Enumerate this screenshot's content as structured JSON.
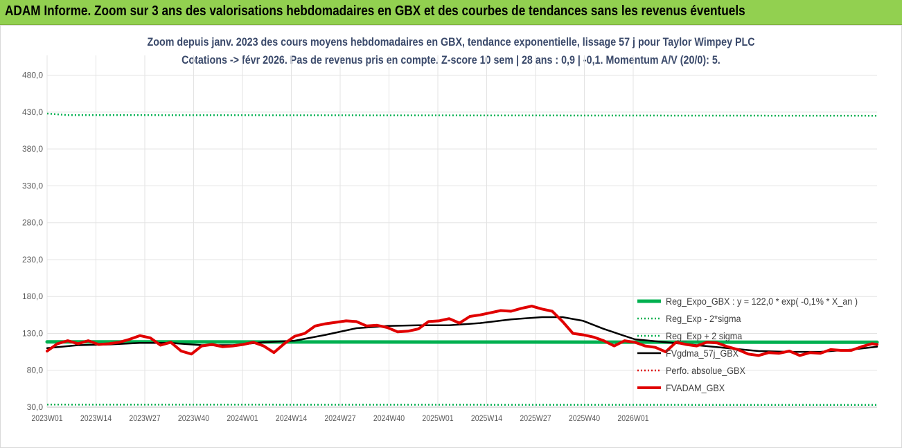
{
  "header": {
    "banner": "ADAM Informe. Zoom sur 3 ans des valorisations hebdomadaires en GBX et des courbes de tendances sans les revenus éventuels"
  },
  "chart_data": {
    "type": "line",
    "title": "Zoom depuis janv. 2023 des cours moyens hebdomadaires en GBX, tendance exponentielle, lissage 57 j pour Taylor Wimpey PLC",
    "subtitle": "Cotations -> févr 2026. Pas de revenus pris en compte. Z-score 10 sem | 28 ans : 0,9 | -0,1. Momentum A/V (20/0): 5.",
    "x_ticks": [
      "2023W01",
      "2023W14",
      "2023W27",
      "2023W40",
      "2024W01",
      "2024W14",
      "2024W27",
      "2024W40",
      "2025W01",
      "2025W14",
      "2025W27",
      "2025W40",
      "2026W01"
    ],
    "y_ticks": [
      "30,0",
      "80,0",
      "130,0",
      "180,0",
      "230,0",
      "280,0",
      "330,0",
      "380,0",
      "430,0",
      "480,0"
    ],
    "ylim": [
      30,
      490
    ],
    "x_range": [
      0,
      161
    ],
    "legend_position": "right",
    "series": [
      {
        "name": "Reg_Expo_GBX : y = 122,0 * exp( -0,1% *  X_an )",
        "color": "#00b050",
        "style": "thick",
        "x": [
          0,
          161
        ],
        "values": [
          118.5,
          118.0
        ]
      },
      {
        "name": "Reg_Exp - 2*sigma",
        "color": "#00b050",
        "style": "dotted",
        "x": [
          0,
          161
        ],
        "values": [
          33.5,
          33.0
        ]
      },
      {
        "name": "Reg_Exp + 2 sigma",
        "color": "#00b050",
        "style": "dotted",
        "x": [
          0,
          4,
          161
        ],
        "values": [
          428,
          426,
          425
        ]
      },
      {
        "name": "FVgdma_57j_GBX",
        "color": "#000000",
        "style": "solid",
        "x": [
          0,
          6,
          12,
          18,
          24,
          30,
          36,
          42,
          48,
          54,
          60,
          66,
          72,
          78,
          84,
          90,
          96,
          100,
          104,
          108,
          114,
          120,
          126,
          132,
          138,
          144,
          150,
          156,
          161
        ],
        "values": [
          110,
          114,
          115,
          117,
          117,
          114,
          114,
          118,
          120,
          128,
          137,
          140,
          141,
          141,
          144,
          149,
          152,
          152,
          147,
          136,
          122,
          118,
          114,
          110,
          106,
          105,
          105,
          108,
          112
        ]
      },
      {
        "name": "Perfo. absolue_GBX",
        "color": "#e00000",
        "style": "dotted",
        "x": [],
        "values": []
      },
      {
        "name": "FVADAM_GBX",
        "color": "#e00000",
        "style": "thick",
        "x": [
          0,
          2,
          4,
          6,
          8,
          10,
          12,
          14,
          16,
          18,
          20,
          22,
          24,
          26,
          28,
          30,
          32,
          34,
          36,
          38,
          40,
          42,
          44,
          46,
          48,
          50,
          52,
          54,
          56,
          58,
          60,
          62,
          64,
          66,
          68,
          70,
          72,
          74,
          76,
          78,
          80,
          82,
          84,
          86,
          88,
          90,
          92,
          94,
          96,
          98,
          100,
          102,
          104,
          106,
          108,
          110,
          112,
          114,
          116,
          118,
          120,
          122,
          124,
          126,
          128,
          130,
          132,
          134,
          136,
          138,
          140,
          142,
          144,
          146,
          148,
          150,
          152,
          154,
          156,
          158,
          160,
          161
        ],
        "values": [
          106,
          116,
          120,
          116,
          120,
          115,
          116,
          118,
          122,
          127,
          124,
          114,
          118,
          106,
          102,
          113,
          115,
          112,
          113,
          115,
          118,
          113,
          104,
          116,
          126,
          130,
          140,
          143,
          145,
          147,
          146,
          140,
          141,
          138,
          132,
          133,
          136,
          146,
          147,
          150,
          144,
          153,
          155,
          158,
          161,
          160,
          164,
          167,
          163,
          160,
          146,
          130,
          128,
          125,
          120,
          113,
          120,
          118,
          113,
          111,
          105,
          118,
          115,
          113,
          118,
          117,
          112,
          108,
          102,
          100,
          104,
          103,
          106,
          100,
          104,
          103,
          108,
          107,
          107,
          112,
          116,
          115
        ]
      }
    ]
  }
}
